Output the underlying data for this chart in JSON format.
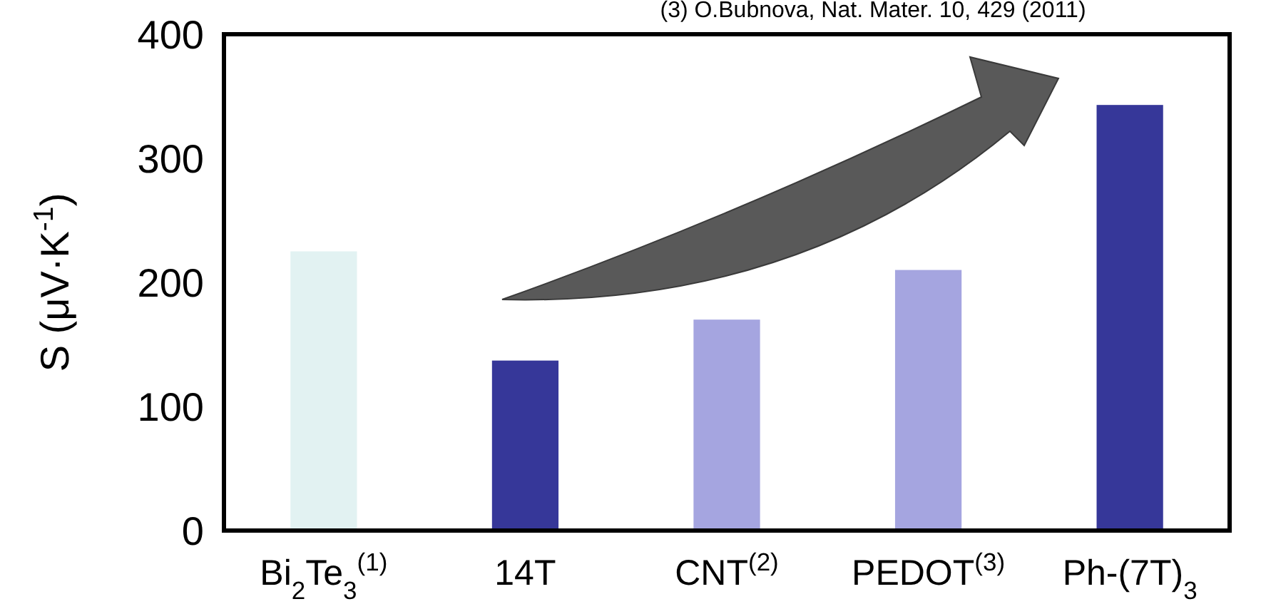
{
  "chart_data": {
    "type": "bar",
    "ylabel": "S (μV·K$^{-1}$)",
    "categories": [
      "Bi$_{2}$Te$_{3}$$^{(1)}$",
      "14T",
      "CNT$^{(2)}$",
      "PEDOT$^{(3)}$",
      "Ph-(7T)$_{3}$"
    ],
    "values": [
      225,
      137,
      170,
      210,
      343
    ],
    "colors": [
      "#e2f2f2",
      "#363799",
      "#a5a5e0",
      "#a5a5e0",
      "#363799"
    ],
    "ylim": [
      0,
      400
    ],
    "yticks": [
      0,
      100,
      200,
      300,
      400
    ],
    "grid": false,
    "annotations": [
      "(3) O.Bubnova,  Nat. Mater. 10, 429 (2011)"
    ]
  }
}
